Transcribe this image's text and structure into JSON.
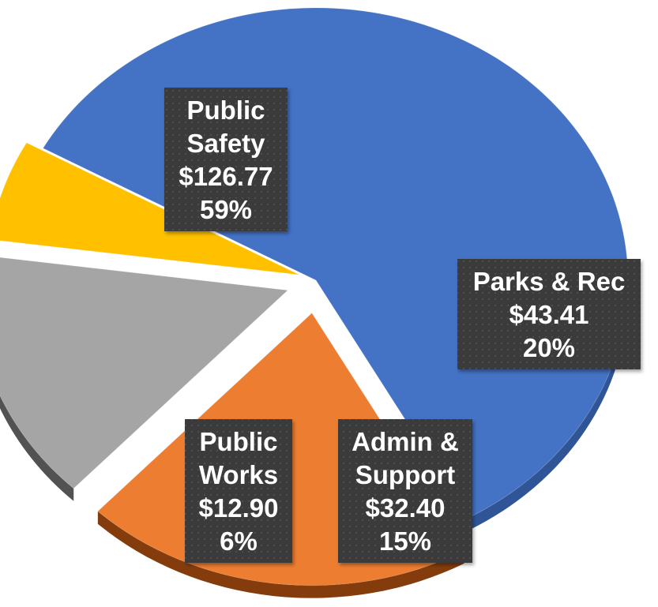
{
  "chart_data": {
    "type": "pie",
    "style": "3d-exploded",
    "title": "",
    "unit": "$",
    "slices": [
      {
        "name": "Public Safety",
        "label_lines": [
          "Public",
          "Safety"
        ],
        "value_label": "$126.77",
        "value": 126.77,
        "percent_label": "59%",
        "percent": 59,
        "color": "#4472C4",
        "side_color": "#2F5597"
      },
      {
        "name": "Parks & Rec",
        "label_lines": [
          "Parks & Rec"
        ],
        "value_label": "$43.41",
        "value": 43.41,
        "percent_label": "20%",
        "percent": 20,
        "color": "#ED7D31",
        "side_color": "#843C0C"
      },
      {
        "name": "Admin & Support",
        "label_lines": [
          "Admin &",
          "Support"
        ],
        "value_label": "$32.40",
        "value": 32.4,
        "percent_label": "15%",
        "percent": 15,
        "color": "#A5A5A5",
        "side_color": "#525252"
      },
      {
        "name": "Public Works",
        "label_lines": [
          "Public",
          "Works"
        ],
        "value_label": "$12.90",
        "value": 12.9,
        "percent_label": "6%",
        "percent": 6,
        "color": "#FFC000",
        "side_color": "#BF9000"
      }
    ],
    "label_box_color": "#3A3A3A",
    "label_text_color": "#FFFFFF",
    "legend": "none"
  }
}
